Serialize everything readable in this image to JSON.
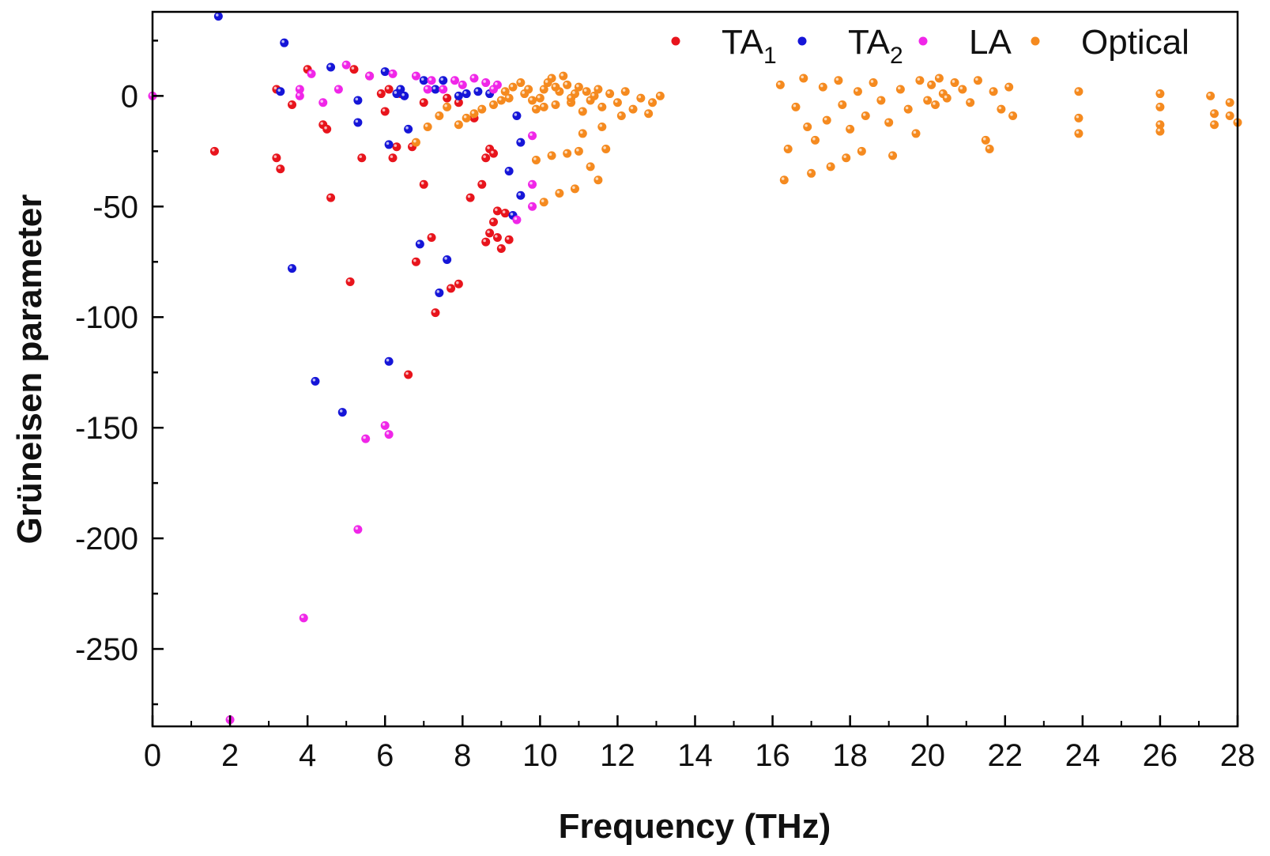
{
  "chart_data": {
    "type": "scatter",
    "title": "",
    "xlabel": "Frequency (THz)",
    "ylabel": "Grüneisen parameter",
    "xlim": [
      0,
      28
    ],
    "ylim": [
      -285,
      38
    ],
    "x_ticks": [
      0,
      2,
      4,
      6,
      8,
      10,
      12,
      14,
      16,
      18,
      20,
      22,
      24,
      26,
      28
    ],
    "y_ticks": [
      0,
      -50,
      -100,
      -150,
      -200,
      -250
    ],
    "legend_position": "top-right",
    "series": [
      {
        "name": "TA1",
        "label_main": "TA",
        "label_sub": "1",
        "color": "#e8141c",
        "points": [
          [
            1.6,
            -25
          ],
          [
            3.2,
            3
          ],
          [
            3.2,
            -28
          ],
          [
            3.3,
            -33
          ],
          [
            3.6,
            -4
          ],
          [
            4.0,
            12
          ],
          [
            4.4,
            -13
          ],
          [
            4.5,
            -15
          ],
          [
            4.6,
            -46
          ],
          [
            5.1,
            -84
          ],
          [
            5.2,
            12
          ],
          [
            5.4,
            -28
          ],
          [
            5.6,
            9
          ],
          [
            5.9,
            1
          ],
          [
            6.0,
            -7
          ],
          [
            6.1,
            3
          ],
          [
            6.2,
            -28
          ],
          [
            6.3,
            -23
          ],
          [
            6.6,
            -126
          ],
          [
            6.7,
            -23
          ],
          [
            6.8,
            -75
          ],
          [
            7.0,
            -3
          ],
          [
            7.0,
            -40
          ],
          [
            7.2,
            -64
          ],
          [
            7.3,
            -98
          ],
          [
            7.6,
            -1
          ],
          [
            7.7,
            -87
          ],
          [
            7.9,
            -85
          ],
          [
            8.2,
            -46
          ],
          [
            8.5,
            -40
          ],
          [
            8.6,
            -28
          ],
          [
            8.7,
            -24
          ],
          [
            8.8,
            -26
          ],
          [
            8.6,
            -66
          ],
          [
            8.7,
            -62
          ],
          [
            8.8,
            -57
          ],
          [
            8.9,
            -52
          ],
          [
            8.9,
            -64
          ],
          [
            9.0,
            -69
          ],
          [
            9.1,
            -53
          ],
          [
            9.2,
            -65
          ],
          [
            6.4,
            1
          ],
          [
            7.9,
            -3
          ],
          [
            8.3,
            -10
          ]
        ]
      },
      {
        "name": "TA2",
        "label_main": "TA",
        "label_sub": "2",
        "color": "#1515d8",
        "points": [
          [
            1.7,
            36
          ],
          [
            3.3,
            2
          ],
          [
            3.4,
            24
          ],
          [
            3.6,
            -78
          ],
          [
            4.2,
            -129
          ],
          [
            4.6,
            13
          ],
          [
            4.9,
            -143
          ],
          [
            5.3,
            -2
          ],
          [
            5.3,
            -12
          ],
          [
            6.0,
            11
          ],
          [
            6.1,
            -22
          ],
          [
            6.1,
            -120
          ],
          [
            6.3,
            1
          ],
          [
            6.4,
            3
          ],
          [
            6.6,
            -15
          ],
          [
            6.9,
            -67
          ],
          [
            7.0,
            7
          ],
          [
            7.4,
            -89
          ],
          [
            7.5,
            7
          ],
          [
            7.6,
            -74
          ],
          [
            7.9,
            0
          ],
          [
            8.1,
            1
          ],
          [
            8.4,
            2
          ],
          [
            8.7,
            1
          ],
          [
            9.2,
            -34
          ],
          [
            9.3,
            -54
          ],
          [
            9.4,
            -9
          ],
          [
            9.5,
            -21
          ],
          [
            9.5,
            -45
          ],
          [
            6.5,
            0
          ],
          [
            7.3,
            3
          ]
        ]
      },
      {
        "name": "LA",
        "label_main": "LA",
        "label_sub": "",
        "color": "#f026e8",
        "points": [
          [
            0.0,
            0
          ],
          [
            2.0,
            -282
          ],
          [
            3.8,
            3
          ],
          [
            3.8,
            0
          ],
          [
            3.9,
            -236
          ],
          [
            4.1,
            10
          ],
          [
            4.4,
            -3
          ],
          [
            4.8,
            3
          ],
          [
            5.0,
            14
          ],
          [
            5.3,
            -196
          ],
          [
            5.5,
            -155
          ],
          [
            5.6,
            9
          ],
          [
            6.0,
            -149
          ],
          [
            6.1,
            -153
          ],
          [
            6.2,
            10
          ],
          [
            6.8,
            9
          ],
          [
            7.1,
            3
          ],
          [
            7.5,
            3
          ],
          [
            7.8,
            7
          ],
          [
            8.0,
            5
          ],
          [
            8.3,
            8
          ],
          [
            8.6,
            6
          ],
          [
            8.8,
            3
          ],
          [
            8.9,
            5
          ],
          [
            9.4,
            -56
          ],
          [
            9.8,
            -18
          ],
          [
            9.8,
            -40
          ],
          [
            9.8,
            -50
          ],
          [
            7.2,
            7
          ]
        ]
      },
      {
        "name": "Optical",
        "label_main": "Optical",
        "label_sub": "",
        "color": "#f58a1f",
        "points": [
          [
            6.8,
            -21
          ],
          [
            7.1,
            -14
          ],
          [
            7.4,
            -9
          ],
          [
            7.6,
            -5
          ],
          [
            7.9,
            -13
          ],
          [
            8.1,
            -10
          ],
          [
            8.3,
            -8
          ],
          [
            8.5,
            -6
          ],
          [
            8.8,
            -4
          ],
          [
            9.0,
            -2
          ],
          [
            9.1,
            2
          ],
          [
            9.3,
            4
          ],
          [
            9.5,
            6
          ],
          [
            9.6,
            1
          ],
          [
            9.8,
            -2
          ],
          [
            9.9,
            -6
          ],
          [
            10.0,
            -1
          ],
          [
            10.1,
            3
          ],
          [
            10.2,
            6
          ],
          [
            10.3,
            8
          ],
          [
            10.4,
            -4
          ],
          [
            10.5,
            2
          ],
          [
            10.6,
            9
          ],
          [
            10.7,
            5
          ],
          [
            10.8,
            -3
          ],
          [
            10.9,
            1
          ],
          [
            11.0,
            4
          ],
          [
            11.1,
            -7
          ],
          [
            11.2,
            2
          ],
          [
            11.3,
            -2
          ],
          [
            11.5,
            3
          ],
          [
            11.6,
            -5
          ],
          [
            11.8,
            1
          ],
          [
            12.0,
            -3
          ],
          [
            12.2,
            2
          ],
          [
            12.4,
            -6
          ],
          [
            12.6,
            -1
          ],
          [
            12.8,
            -8
          ],
          [
            12.9,
            -3
          ],
          [
            13.1,
            0
          ],
          [
            9.2,
            -1
          ],
          [
            9.7,
            3
          ],
          [
            10.1,
            -5
          ],
          [
            10.4,
            4
          ],
          [
            10.8,
            -1
          ],
          [
            11.4,
            0
          ],
          [
            12.1,
            -9
          ],
          [
            9.9,
            -29
          ],
          [
            10.1,
            -48
          ],
          [
            10.3,
            -27
          ],
          [
            10.5,
            -44
          ],
          [
            10.7,
            -26
          ],
          [
            10.9,
            -42
          ],
          [
            11.0,
            -25
          ],
          [
            11.1,
            -17
          ],
          [
            11.3,
            -32
          ],
          [
            11.5,
            -38
          ],
          [
            11.6,
            -14
          ],
          [
            11.7,
            -24
          ],
          [
            16.2,
            5
          ],
          [
            16.3,
            -38
          ],
          [
            16.4,
            -24
          ],
          [
            16.6,
            -5
          ],
          [
            16.8,
            8
          ],
          [
            16.9,
            -14
          ],
          [
            17.0,
            -35
          ],
          [
            17.1,
            -20
          ],
          [
            17.3,
            4
          ],
          [
            17.4,
            -11
          ],
          [
            17.5,
            -32
          ],
          [
            17.7,
            7
          ],
          [
            17.8,
            -4
          ],
          [
            17.9,
            -28
          ],
          [
            18.0,
            -15
          ],
          [
            18.2,
            2
          ],
          [
            18.3,
            -25
          ],
          [
            18.4,
            -9
          ],
          [
            18.6,
            6
          ],
          [
            18.8,
            -2
          ],
          [
            19.0,
            -12
          ],
          [
            19.1,
            -27
          ],
          [
            19.3,
            3
          ],
          [
            19.5,
            -6
          ],
          [
            19.7,
            -17
          ],
          [
            19.8,
            7
          ],
          [
            20.0,
            -2
          ],
          [
            20.1,
            5
          ],
          [
            20.2,
            -4
          ],
          [
            20.3,
            8
          ],
          [
            20.4,
            1
          ],
          [
            20.5,
            -1
          ],
          [
            20.7,
            6
          ],
          [
            20.9,
            3
          ],
          [
            21.1,
            -3
          ],
          [
            21.3,
            7
          ],
          [
            21.5,
            -20
          ],
          [
            21.6,
            -24
          ],
          [
            21.7,
            2
          ],
          [
            21.9,
            -6
          ],
          [
            22.1,
            4
          ],
          [
            22.2,
            -9
          ],
          [
            23.9,
            -17
          ],
          [
            23.9,
            -10
          ],
          [
            23.9,
            2
          ],
          [
            26.0,
            1
          ],
          [
            26.0,
            -5
          ],
          [
            26.0,
            -13
          ],
          [
            26.0,
            -16
          ],
          [
            27.3,
            0
          ],
          [
            27.4,
            -8
          ],
          [
            27.4,
            -13
          ],
          [
            27.8,
            -3
          ],
          [
            27.8,
            -9
          ],
          [
            28.0,
            -12
          ]
        ]
      }
    ]
  }
}
